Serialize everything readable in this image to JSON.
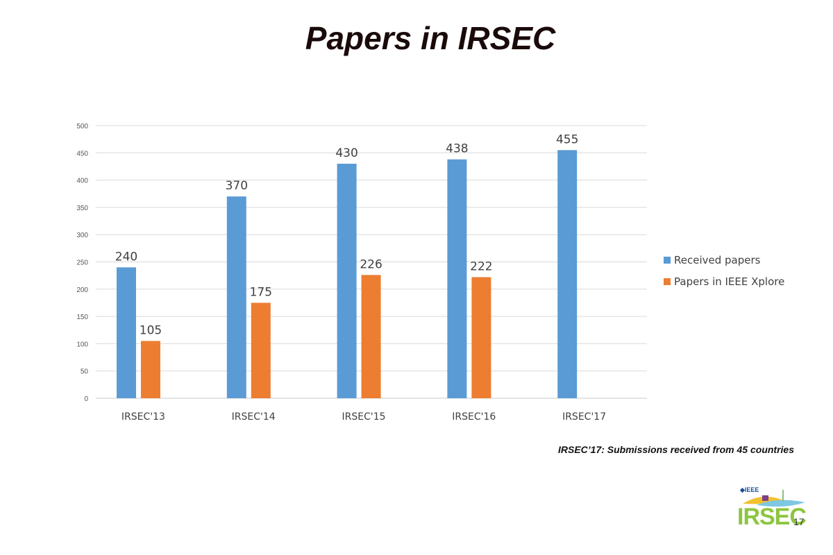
{
  "slide": {
    "title": "Papers in IRSEC",
    "footnote": "IRSEC’17: Submissions received from 45 countries",
    "logo": {
      "brand": "IRSEC",
      "year": "17",
      "org": "IEEE"
    }
  },
  "chart_data": {
    "type": "bar",
    "categories": [
      "IRSEC'13",
      "IRSEC'14",
      "IRSEC'15",
      "IRSEC'16",
      "IRSEC'17"
    ],
    "series": [
      {
        "name": "Received papers",
        "values": [
          240,
          370,
          430,
          438,
          455
        ],
        "color": "#5b9bd5"
      },
      {
        "name": "Papers in IEEE Xplore",
        "values": [
          105,
          175,
          226,
          222,
          null
        ],
        "color": "#ed7d31"
      }
    ],
    "ylim": [
      0,
      500
    ],
    "yticks": [
      0,
      50,
      100,
      150,
      200,
      250,
      300,
      350,
      400,
      450,
      500
    ],
    "grid": true,
    "legend": "right",
    "data_labels": true
  }
}
